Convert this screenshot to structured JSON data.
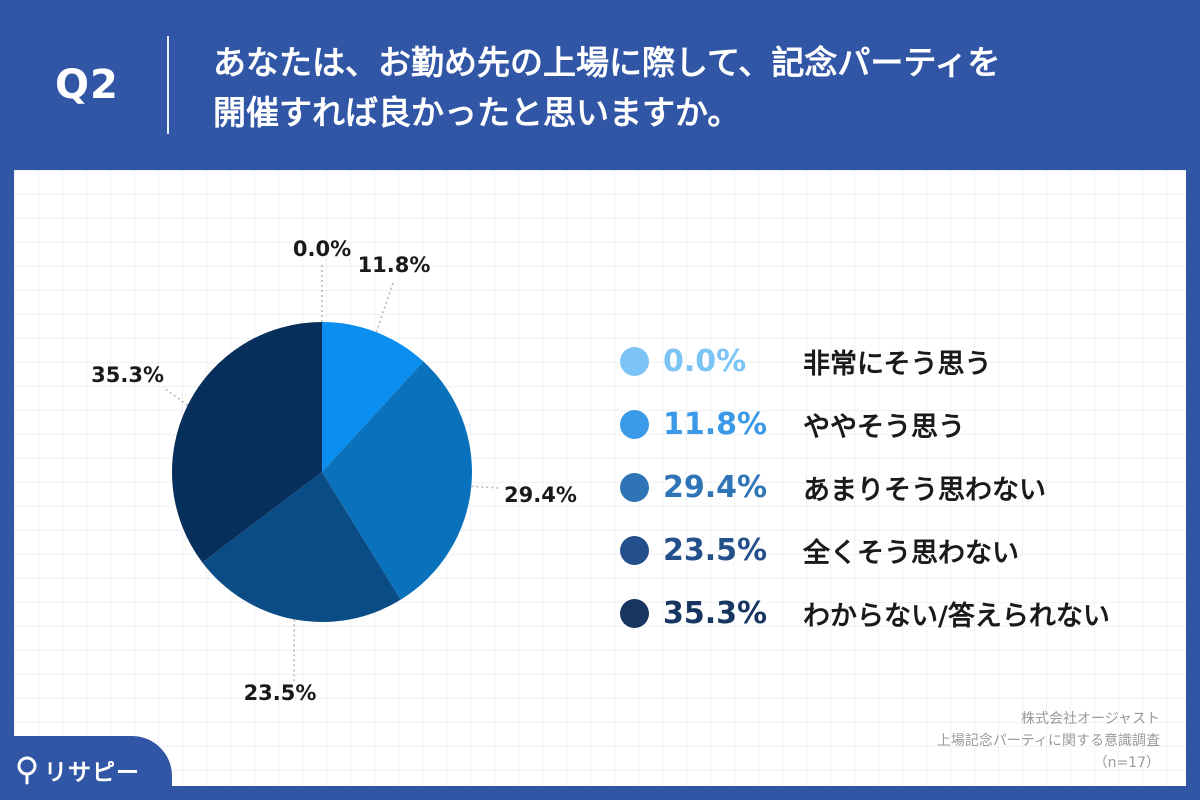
{
  "header": {
    "question_number": "Q2",
    "question_line1": "あなたは、お勤め先の上場に際して、記念パーティを",
    "question_line2": "開催すれば良かったと思いますか。"
  },
  "chart_data": {
    "type": "pie",
    "categories": [
      "非常にそう思う",
      "ややそう思う",
      "あまりそう思わない",
      "全くそう思わない",
      "わからない/答えられない"
    ],
    "values": [
      0.0,
      11.8,
      29.4,
      23.5,
      35.3
    ],
    "value_labels": [
      "0.0%",
      "11.8%",
      "29.4%",
      "23.5%",
      "35.3%"
    ],
    "colors": [
      "#7cc4f5",
      "#0a8ff0",
      "#0a72bd",
      "#0a4d86",
      "#072f5c"
    ],
    "start_angle": "12 o'clock, clockwise",
    "legend_position": "right"
  },
  "legend": {
    "items": [
      {
        "pct": "0.0%",
        "label": "非常にそう思う",
        "color": "#7cc4f5"
      },
      {
        "pct": "11.8%",
        "label": "ややそう思う",
        "color": "#3a9ae8"
      },
      {
        "pct": "29.4%",
        "label": "あまりそう思わない",
        "color": "#2f74b6"
      },
      {
        "pct": "23.5%",
        "label": "全くそう思わない",
        "color": "#23508a"
      },
      {
        "pct": "35.3%",
        "label": "わからない/答えられない",
        "color": "#163560"
      }
    ]
  },
  "source": {
    "line1": "株式会社オージャスト",
    "line2": "上場記念パーティに関する意識調査",
    "line3": "（n=17）"
  },
  "brand": {
    "name": "リサピー",
    "icon": "pin-icon"
  },
  "colors": {
    "background": "#3256a6",
    "panel": "#ffffff"
  }
}
